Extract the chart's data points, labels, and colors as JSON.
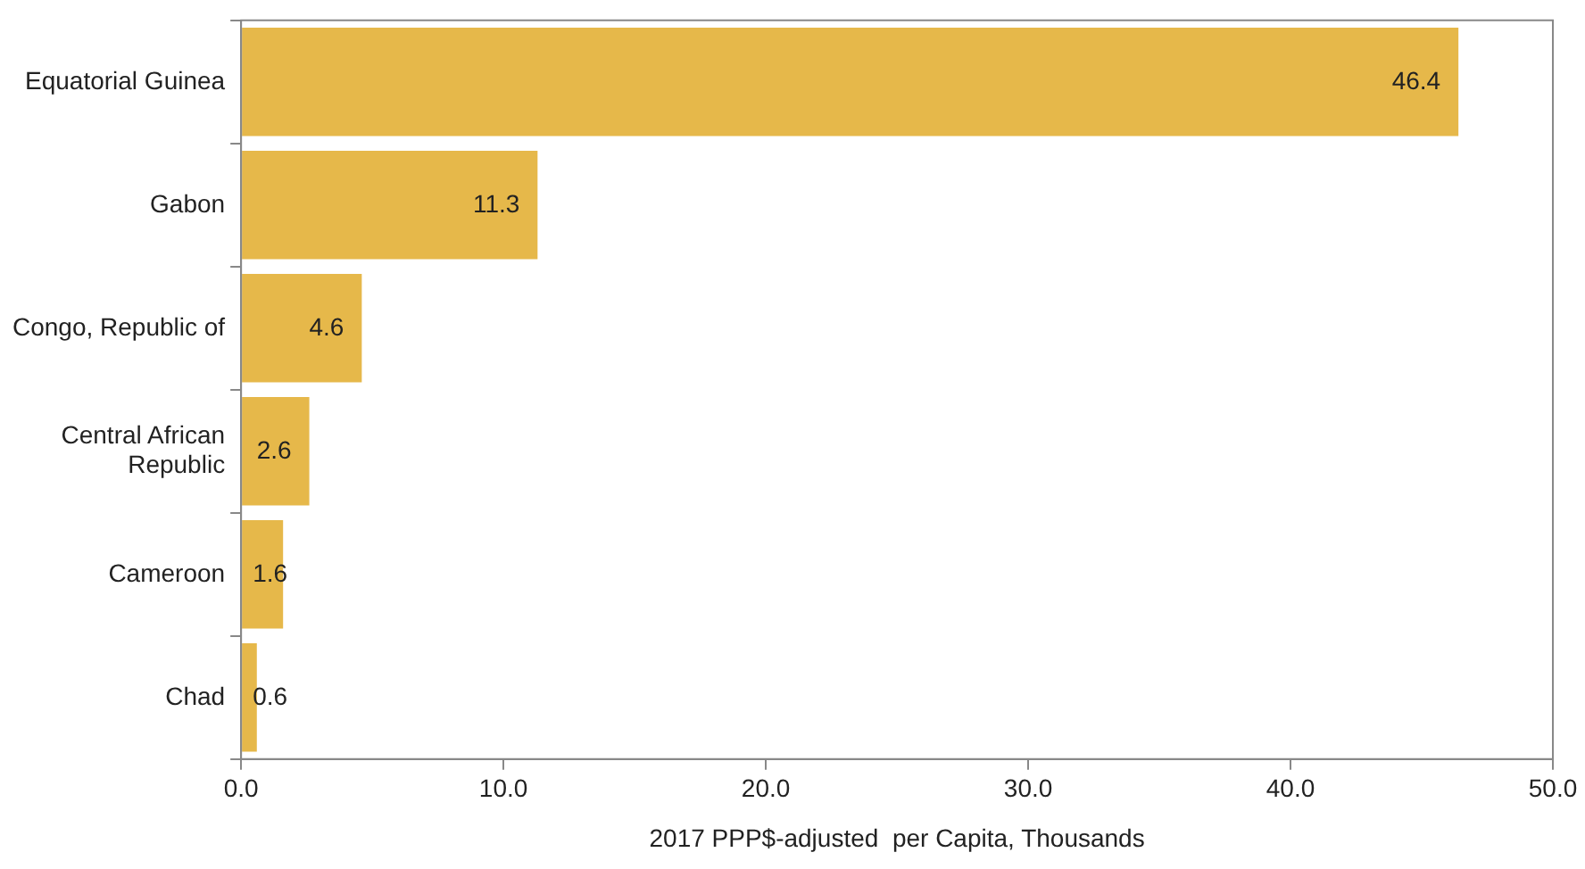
{
  "chart_data": {
    "type": "bar",
    "orientation": "horizontal",
    "categories": [
      "Equatorial Guinea",
      "Gabon",
      "Congo, Republic of",
      "Central African Republic",
      "Cameroon",
      "Chad"
    ],
    "values": [
      46.4,
      11.3,
      4.6,
      2.6,
      1.6,
      0.6
    ],
    "color": "#e6b84a",
    "xlabel": "2017 PPP$-adjusted  per Capita, Thousands",
    "xlim": [
      0,
      50
    ],
    "xticks": [
      {
        "value": 0,
        "label": "0.0"
      },
      {
        "value": 10,
        "label": "10.0"
      },
      {
        "value": 20,
        "label": "20.0"
      },
      {
        "value": 30,
        "label": "30.0"
      },
      {
        "value": 40,
        "label": "40.0"
      },
      {
        "value": 50,
        "label": "50.0"
      }
    ],
    "data_labels": true,
    "grid": false,
    "legend": false
  }
}
